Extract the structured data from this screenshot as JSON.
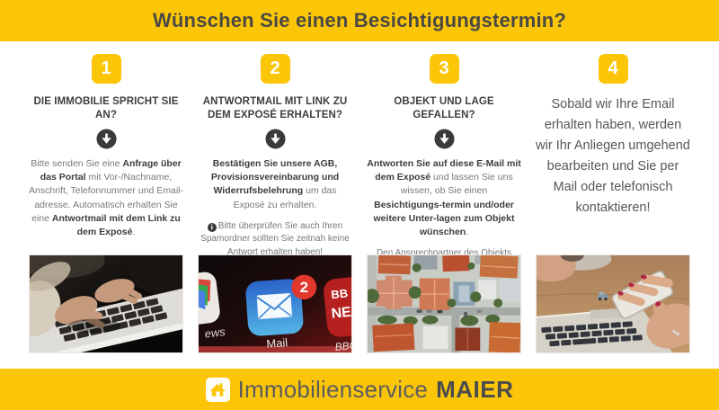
{
  "header": {
    "title": "Wünschen Sie einen Besichtigungstermin?"
  },
  "steps": [
    {
      "number": "1",
      "heading": "DIE IMMOBILIE SPRICHT SIE AN?",
      "body": [
        {
          "t": "Bitte senden Sie eine ",
          "b": false
        },
        {
          "t": "Anfrage über das Portal",
          "b": true
        },
        {
          "t": " mit Vor-/Nachname, Anschrift, Telefonnummer und Email-adresse. Automatisch erhalten Sie eine ",
          "b": false
        },
        {
          "t": "Antwortmail mit dem Link zu dem Exposé",
          "b": true
        },
        {
          "t": ".",
          "b": false
        }
      ]
    },
    {
      "number": "2",
      "heading": "ANTWORTMAIL MIT LINK ZU DEM EXPOSÉ ERHALTEN?",
      "body": [
        {
          "t": "Bestätigen Sie unsere AGB, Provisionsvereinbarung und Widerrufsbelehrung",
          "b": true
        },
        {
          "t": " um das Exposé zu erhalten.",
          "b": false
        }
      ],
      "note": "Bitte überprüfen Sie auch Ihren Spamordner sollten Sie zeitnah keine Antwort erhalten haben!",
      "note_icon": "i"
    },
    {
      "number": "3",
      "heading": "OBJEKT UND LAGE GEFALLEN?",
      "body": [
        {
          "t": "Antworten Sie auf diese E-Mail mit dem Exposé",
          "b": true
        },
        {
          "t": " und lassen Sie uns wissen, ob Sie einen ",
          "b": false
        },
        {
          "t": "Besichtigungs-termin und/oder weitere Unter-lagen zum Objekt wünschen",
          "b": true
        },
        {
          "t": ".",
          "b": false
        }
      ],
      "note": "Den Ansprechpartner des Objekts finden Sie auf der letzten Seite des Exposés."
    },
    {
      "number": "4",
      "text": "Sobald wir Ihre Email erhalten haben, werden wir Ihr Anliegen umgehend bearbeiten und Sie per Mail oder telefonisch kontaktieren!"
    }
  ],
  "photos": [
    {
      "name": "typing-on-laptop"
    },
    {
      "name": "mail-app-icon",
      "labels": {
        "badge": "2",
        "mail": "Mail",
        "news_partial": "ews",
        "bbc_line1": "BB",
        "bbc_line2": "NE",
        "bbc_label": "BBC N"
      }
    },
    {
      "name": "aerial-houses"
    },
    {
      "name": "phone-over-laptop"
    }
  ],
  "footer": {
    "brand_regular": "Immobilienservice",
    "brand_bold": "MAIER"
  },
  "colors": {
    "brand_yellow": "#fcc608",
    "heading_dark": "#3e3e3d",
    "body_gray": "#77787a",
    "badge_red": "#e2372c",
    "mail_blue": "#3c86d4"
  }
}
